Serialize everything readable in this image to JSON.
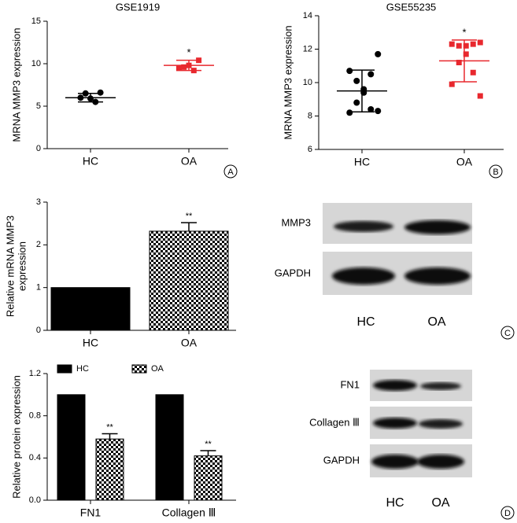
{
  "chart_data": [
    {
      "type": "dot",
      "panel": "A",
      "title": "GSE1919",
      "ylabel": [
        "MRNA MMP3 expression"
      ],
      "categories": [
        "HC",
        "OA"
      ],
      "groups": [
        {
          "color": "#000000",
          "values": [
            6.6,
            6.5,
            5.9,
            5.5,
            6.0
          ],
          "mean": 6.0,
          "sd": 0.5
        },
        {
          "color": "#e8282e",
          "values": [
            10.4,
            9.6,
            9.8,
            9.2,
            9.5
          ],
          "mean": 9.8,
          "sd": 0.6,
          "annotation": "*"
        }
      ],
      "ylim": [
        0,
        15
      ],
      "yticks": [
        0,
        5,
        10,
        15
      ]
    },
    {
      "type": "dot",
      "panel": "B",
      "title": "GSE55235",
      "ylabel": [
        "MRNA MMP3 expression"
      ],
      "categories": [
        "HC",
        "OA"
      ],
      "groups": [
        {
          "color": "#000000",
          "values": [
            11.7,
            10.7,
            10.5,
            10.1,
            9.6,
            9.4,
            8.8,
            8.4,
            8.2,
            8.3
          ],
          "mean": 9.5,
          "sd": 1.25
        },
        {
          "color": "#e8282e",
          "values": [
            12.4,
            12.3,
            12.3,
            12.2,
            12.2,
            11.7,
            11.2,
            10.6,
            9.9,
            9.2
          ],
          "mean": 11.3,
          "sd": 1.25,
          "annotation": "*"
        }
      ],
      "ylim": [
        6,
        14
      ],
      "yticks": [
        6,
        8,
        10,
        12,
        14
      ]
    },
    {
      "type": "bar",
      "panel": "",
      "ylabel": [
        "Relative mRNA MMP3",
        "expression"
      ],
      "categories": [
        "HC",
        "OA"
      ],
      "series": [
        {
          "fills": [
            "solid",
            "checker"
          ],
          "color": "#000000",
          "values": [
            1,
            2.32
          ],
          "errors": [
            null,
            0.2
          ],
          "annotations": [
            null,
            "**"
          ]
        }
      ],
      "ylim": [
        0,
        3
      ],
      "yticks": [
        0,
        1,
        2,
        3
      ]
    },
    {
      "type": "grouped-bar",
      "panel": "",
      "ylabel": [
        "Relative protein expression"
      ],
      "categories": [
        "FN1",
        "Collagen Ⅲ"
      ],
      "series": [
        {
          "name": "HC",
          "fill": "solid",
          "color": "#000000",
          "values": [
            1,
            1
          ],
          "errors": [
            null,
            null
          ],
          "annotations": [
            null,
            null
          ]
        },
        {
          "name": "OA",
          "fill": "checker",
          "color": "#000000",
          "values": [
            0.58,
            0.42
          ],
          "errors": [
            0.05,
            0.05
          ],
          "annotations": [
            "**",
            "**"
          ]
        }
      ],
      "ylim": [
        0,
        1.2
      ],
      "yticks": [
        {
          "value": 0,
          "label": "0.0"
        },
        0.4,
        0.8,
        1.2
      ],
      "legend": "top"
    }
  ],
  "blots": [
    {
      "panel": "C",
      "rows": [
        "MMP3",
        "GAPDH"
      ],
      "lanes": [
        "HC",
        "OA"
      ]
    },
    {
      "panel": "D",
      "rows": [
        "FN1",
        "Collagen Ⅲ",
        "GAPDH"
      ],
      "lanes": [
        "HC",
        "OA"
      ]
    }
  ]
}
